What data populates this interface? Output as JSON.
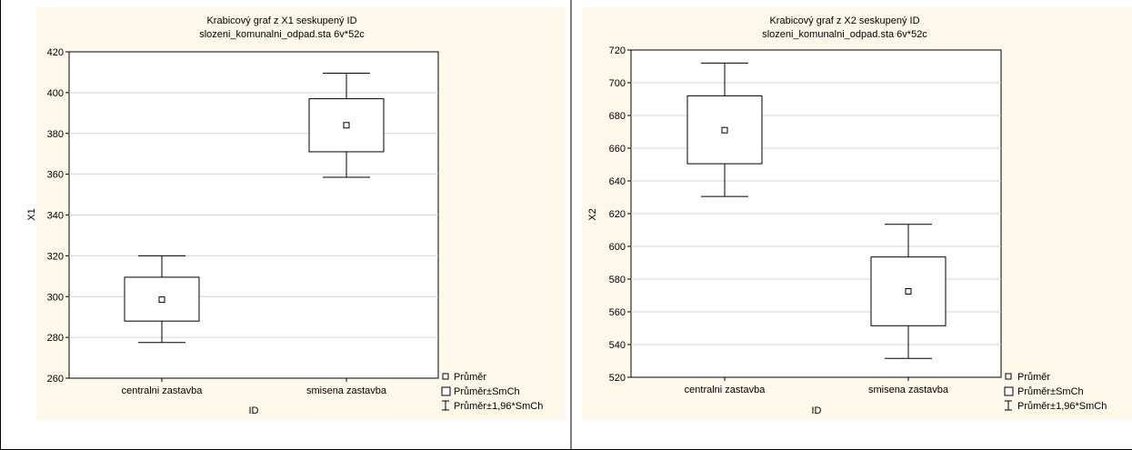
{
  "colors": {
    "panel_bg": "#fdf8e9",
    "plot_bg": "#ffffff",
    "grid": "#d4d4d4",
    "ink": "#000000"
  },
  "legend": {
    "mean": "Průměr",
    "mean_se": "Průměr±SmCh",
    "mean_ci": "Průměr±1,96*SmCh"
  },
  "chart_data": [
    {
      "type": "box",
      "title": "Krabicový graf z X1 seskupený ID",
      "subtitle": "slozeni_komunalni_odpad.sta 6v*52c",
      "xlabel": "ID",
      "ylabel": "X1",
      "ylim": [
        260,
        420
      ],
      "yticks": [
        260,
        280,
        300,
        320,
        340,
        360,
        380,
        400,
        420
      ],
      "grid": true,
      "legend_position": "bottom-right",
      "categories": [
        "centralni zastavba",
        "smisena zastavba"
      ],
      "mean": [
        298.5,
        384
      ],
      "mean_minus_se": [
        288,
        371
      ],
      "mean_plus_se": [
        309.5,
        397
      ],
      "mean_minus_1_96se": [
        277.5,
        358.5
      ],
      "mean_plus_1_96se": [
        320,
        409.5
      ]
    },
    {
      "type": "box",
      "title": "Krabicový graf z X2 seskupený ID",
      "subtitle": "slozeni_komunalni_odpad.sta 6v*52c",
      "xlabel": "ID",
      "ylabel": "X2",
      "ylim": [
        520,
        720
      ],
      "yticks": [
        520,
        540,
        560,
        580,
        600,
        620,
        640,
        660,
        680,
        700,
        720
      ],
      "grid": true,
      "legend_position": "bottom-right",
      "categories": [
        "centralni zastavba",
        "smisena zastavba"
      ],
      "mean": [
        671,
        572.5
      ],
      "mean_minus_se": [
        650.5,
        551.5
      ],
      "mean_plus_se": [
        692,
        593.5
      ],
      "mean_minus_1_96se": [
        630.5,
        531.5
      ],
      "mean_plus_1_96se": [
        712,
        613.5
      ]
    }
  ]
}
